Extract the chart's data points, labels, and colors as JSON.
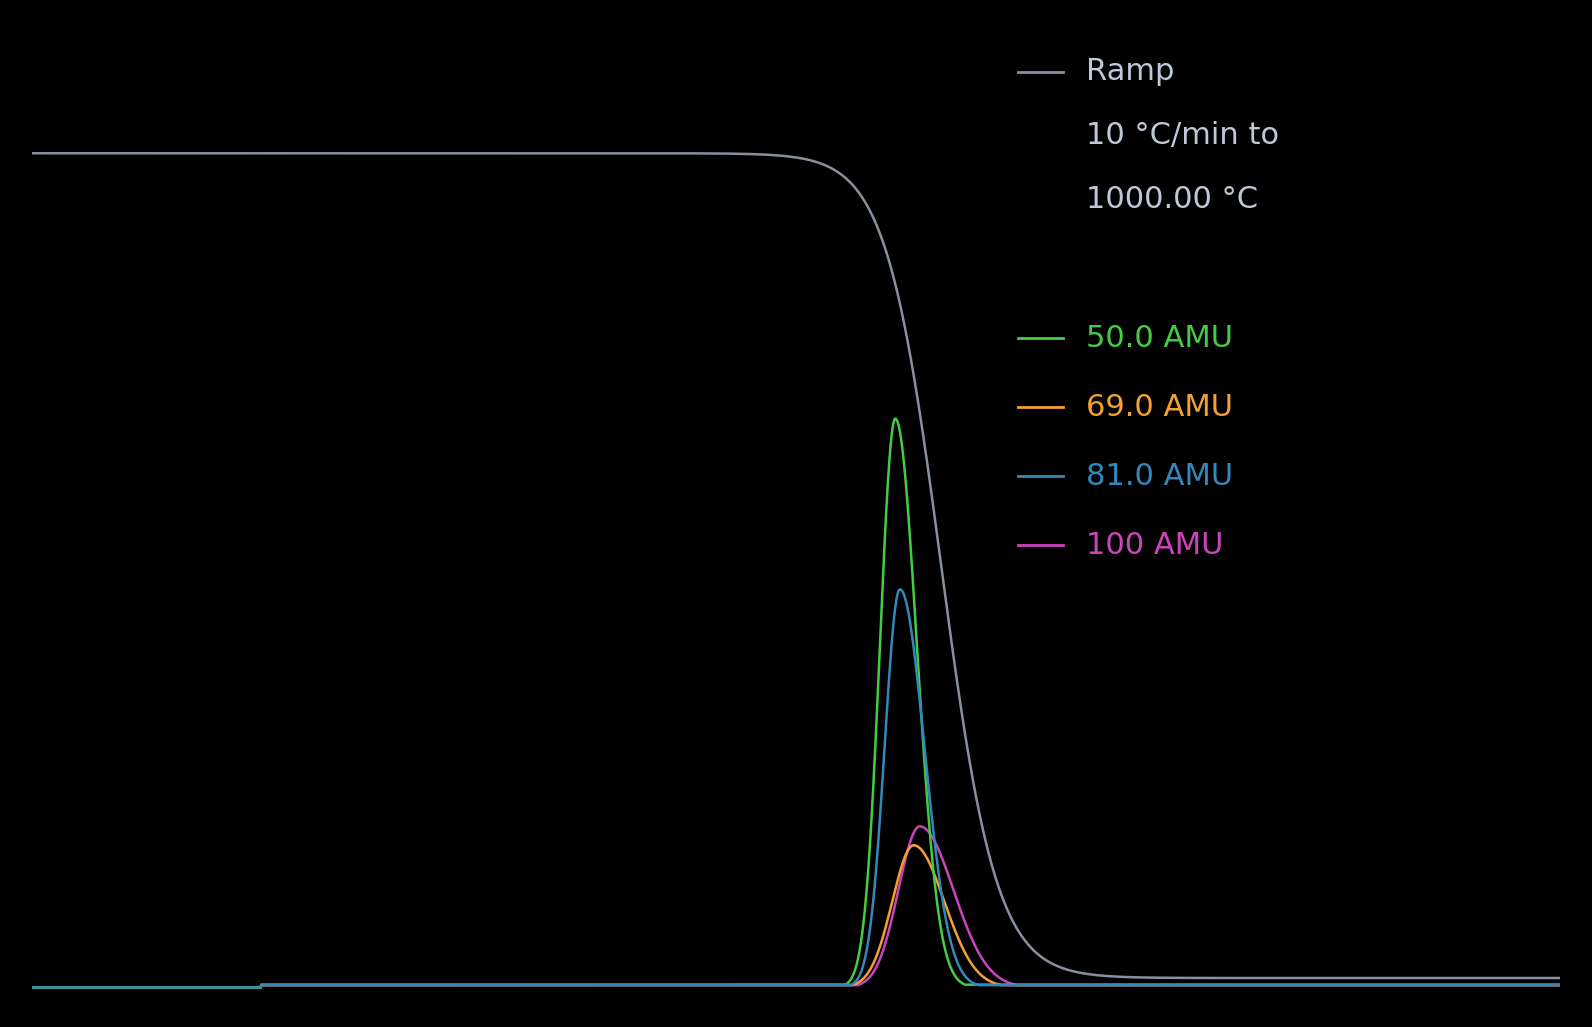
{
  "background_color": "#000000",
  "ramp_color": "#8890a0",
  "amu50_color": "#44cc44",
  "amu69_color": "#f5a030",
  "amu81_color": "#3388bb",
  "amu100_color": "#cc44bb",
  "legend_ramp_line1": "Ramp",
  "legend_ramp_line2": "10 °C/min to",
  "legend_ramp_line3": "1000.00 °C",
  "legend_50": "50.0 AMU",
  "legend_69": "69.0 AMU",
  "legend_81": "81.0 AMU",
  "legend_100": "100 AMU",
  "legend_fontsize": 22,
  "legend_color": "#c0c8d8"
}
